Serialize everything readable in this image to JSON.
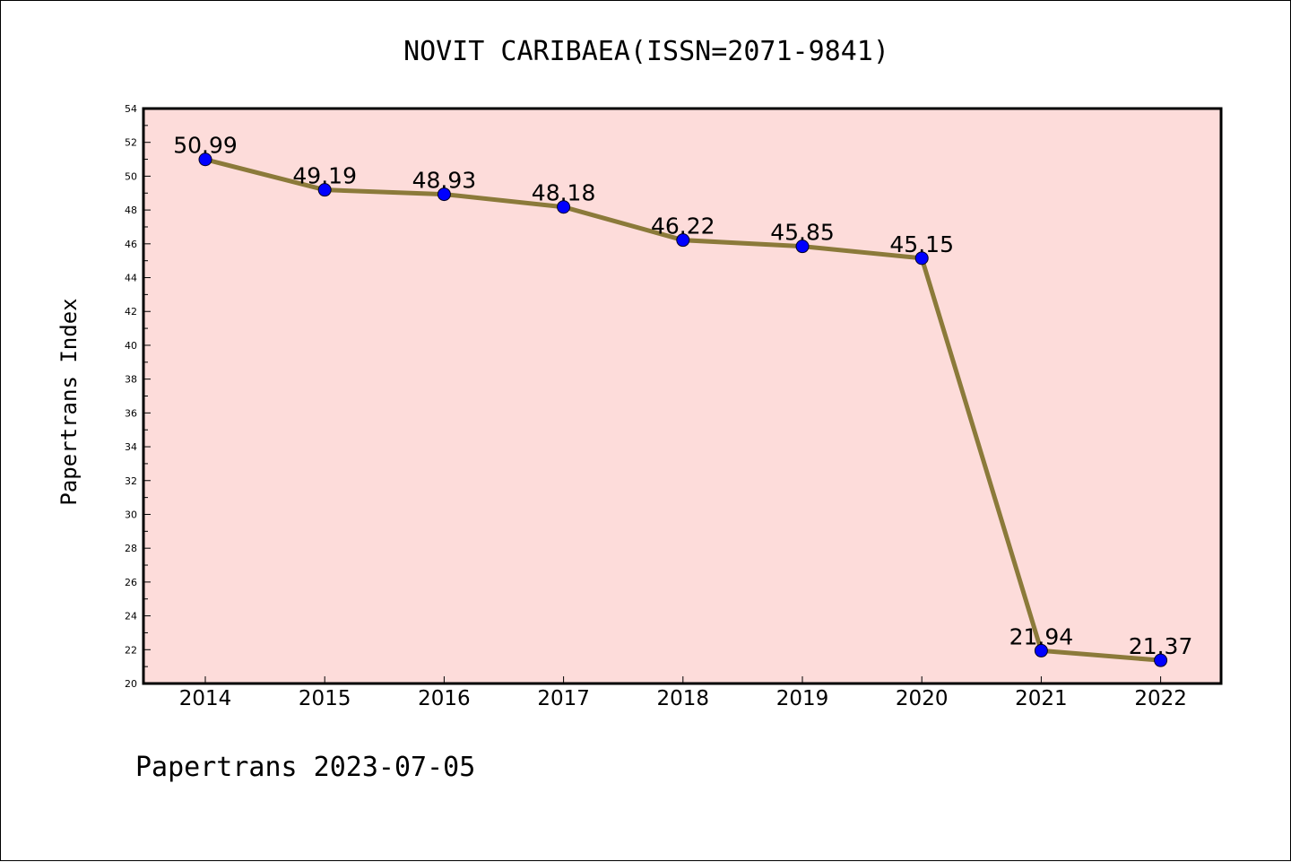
{
  "chart_data": {
    "type": "line",
    "title": "NOVIT CARIBAEA(ISSN=2071-9841)",
    "xlabel": "",
    "ylabel": "Papertrans Index",
    "footer": "Papertrans 2023-07-05",
    "categories": [
      "2014",
      "2015",
      "2016",
      "2017",
      "2018",
      "2019",
      "2020",
      "2021",
      "2022"
    ],
    "series": [
      {
        "values": [
          50.99,
          49.19,
          48.93,
          48.18,
          46.22,
          45.85,
          45.15,
          21.94,
          21.37
        ],
        "labels": [
          "50.99",
          "49.19",
          "48.93",
          "48.18",
          "46.22",
          "45.85",
          "45.15",
          "21.94",
          "21.37"
        ]
      }
    ],
    "ylim": [
      20,
      54
    ],
    "yticks": [
      20,
      22,
      24,
      26,
      28,
      30,
      32,
      34,
      36,
      38,
      40,
      42,
      44,
      46,
      48,
      50,
      52,
      54
    ],
    "grid": false,
    "colors": {
      "plot_background": "#FDDCDA",
      "line": "#8B7A3A",
      "marker": "#0000FF"
    }
  }
}
